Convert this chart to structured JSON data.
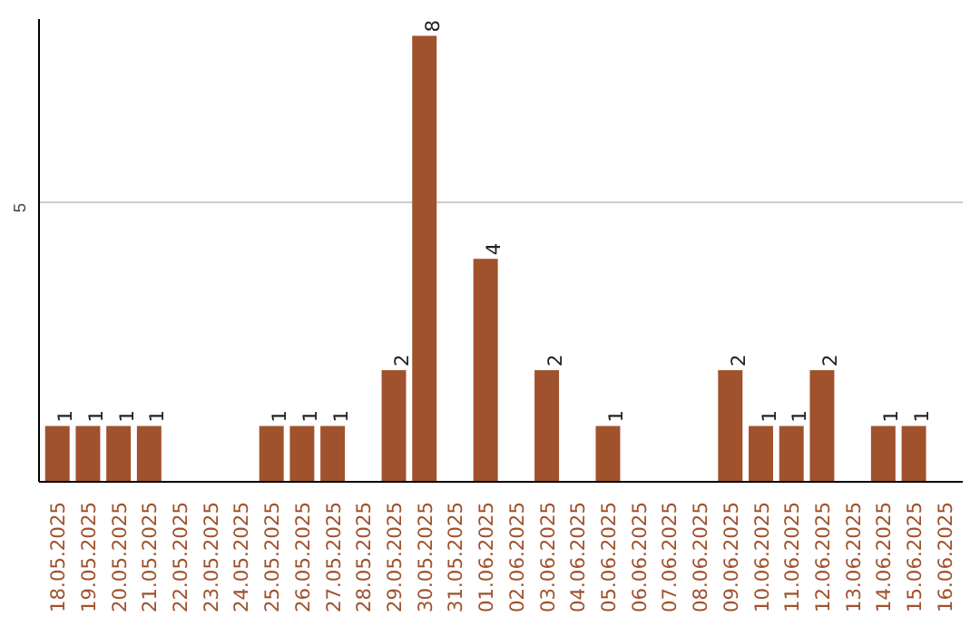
{
  "chart_data": {
    "type": "bar",
    "categories": [
      "18.05.2025",
      "19.05.2025",
      "20.05.2025",
      "21.05.2025",
      "22.05.2025",
      "23.05.2025",
      "24.05.2025",
      "25.05.2025",
      "26.05.2025",
      "27.05.2025",
      "28.05.2025",
      "29.05.2025",
      "30.05.2025",
      "31.05.2025",
      "01.06.2025",
      "02.06.2025",
      "03.06.2025",
      "04.06.2025",
      "05.06.2025",
      "06.06.2025",
      "07.06.2025",
      "08.06.2025",
      "09.06.2025",
      "10.06.2025",
      "11.06.2025",
      "12.06.2025",
      "13.06.2025",
      "14.06.2025",
      "15.06.2025",
      "16.06.2025"
    ],
    "values": [
      1,
      1,
      1,
      1,
      0,
      0,
      0,
      1,
      1,
      1,
      0,
      2,
      8,
      0,
      4,
      0,
      2,
      0,
      1,
      0,
      0,
      0,
      2,
      1,
      1,
      2,
      0,
      1,
      1,
      0
    ],
    "value_labels": [
      "1",
      "1",
      "1",
      "1",
      null,
      null,
      null,
      "1",
      "1",
      "1",
      null,
      "2",
      "8",
      null,
      "4",
      null,
      "2",
      null,
      "1",
      null,
      null,
      null,
      "2",
      "1",
      "1",
      "2",
      null,
      "1",
      "1",
      null
    ],
    "color": "#a0522d",
    "ylim": [
      0,
      8.3
    ],
    "yticks": [
      5
    ],
    "grid": "y"
  }
}
